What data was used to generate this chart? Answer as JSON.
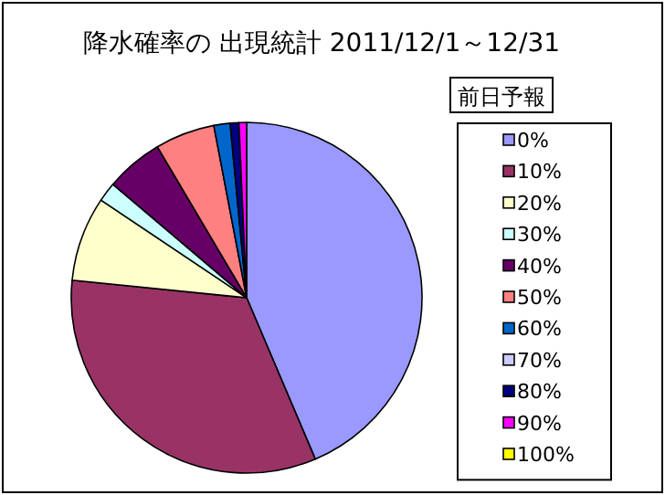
{
  "chart_data": {
    "type": "pie",
    "title": "降水確率の 出現統計 2011/12/1～12/31",
    "legend_title": "前日予報",
    "legend": "right",
    "categories": [
      "0%",
      "10%",
      "20%",
      "30%",
      "40%",
      "50%",
      "60%",
      "70%",
      "80%",
      "90%",
      "100%"
    ],
    "values": [
      43.6,
      33.0,
      7.8,
      1.8,
      5.3,
      5.5,
      1.5,
      0,
      0.8,
      0.7,
      0
    ],
    "colors": [
      "#9999ff",
      "#993366",
      "#ffffcc",
      "#ccffff",
      "#660066",
      "#ff8080",
      "#0066cc",
      "#ccccff",
      "#000080",
      "#ff00ff",
      "#ffff00"
    ]
  }
}
